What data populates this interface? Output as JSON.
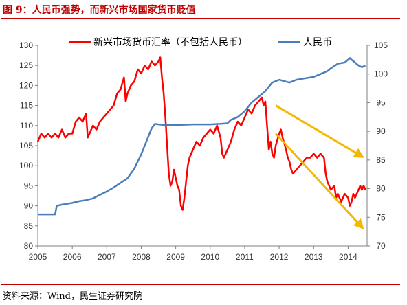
{
  "header": {
    "title": "图 9：人民币强势，而新兴市场国家货币贬值"
  },
  "footer": {
    "source": "资料来源：Wind，民生证券研究院"
  },
  "colors": {
    "accent": "#c00000",
    "series_red": "#ff0000",
    "series_blue": "#4a7ebb",
    "arrow": "#f5b800"
  },
  "chart_data": {
    "type": "line",
    "legend_position": "top",
    "grid": false,
    "x_ticks": [
      "2005",
      "2006",
      "2007",
      "2008",
      "2009",
      "2010",
      "2011",
      "2012",
      "2013",
      "2014"
    ],
    "x_range": [
      2005.0,
      2014.55
    ],
    "y_left": {
      "min": 80,
      "max": 130,
      "ticks": [
        80,
        85,
        90,
        95,
        100,
        105,
        110,
        115,
        120,
        125,
        130
      ]
    },
    "y_right": {
      "min": 70,
      "max": 105,
      "ticks": [
        70,
        75,
        80,
        85,
        90,
        95,
        100,
        105
      ]
    },
    "series": [
      {
        "name": "新兴市场货币汇率（不包括人民币）",
        "axis": "left",
        "color": "#ff0000",
        "points": [
          [
            2005.0,
            106
          ],
          [
            2005.1,
            108
          ],
          [
            2005.2,
            107
          ],
          [
            2005.3,
            108
          ],
          [
            2005.4,
            107
          ],
          [
            2005.5,
            108
          ],
          [
            2005.6,
            107
          ],
          [
            2005.7,
            109
          ],
          [
            2005.8,
            107
          ],
          [
            2005.9,
            108
          ],
          [
            2006.0,
            108
          ],
          [
            2006.1,
            111
          ],
          [
            2006.2,
            112
          ],
          [
            2006.3,
            111
          ],
          [
            2006.4,
            113
          ],
          [
            2006.45,
            107
          ],
          [
            2006.5,
            108
          ],
          [
            2006.6,
            110
          ],
          [
            2006.7,
            109
          ],
          [
            2006.8,
            111
          ],
          [
            2006.9,
            112
          ],
          [
            2007.0,
            113
          ],
          [
            2007.1,
            114
          ],
          [
            2007.2,
            115
          ],
          [
            2007.3,
            118
          ],
          [
            2007.4,
            119
          ],
          [
            2007.5,
            122
          ],
          [
            2007.55,
            116
          ],
          [
            2007.6,
            118
          ],
          [
            2007.7,
            120
          ],
          [
            2007.8,
            121
          ],
          [
            2007.9,
            124
          ],
          [
            2008.0,
            123
          ],
          [
            2008.1,
            125
          ],
          [
            2008.2,
            124
          ],
          [
            2008.3,
            126
          ],
          [
            2008.4,
            125
          ],
          [
            2008.5,
            126
          ],
          [
            2008.55,
            127
          ],
          [
            2008.6,
            122
          ],
          [
            2008.65,
            118
          ],
          [
            2008.7,
            112
          ],
          [
            2008.75,
            105
          ],
          [
            2008.8,
            98
          ],
          [
            2008.85,
            95
          ],
          [
            2008.9,
            96
          ],
          [
            2008.95,
            99
          ],
          [
            2009.0,
            97
          ],
          [
            2009.05,
            95
          ],
          [
            2009.1,
            94
          ],
          [
            2009.15,
            90
          ],
          [
            2009.2,
            89
          ],
          [
            2009.25,
            92
          ],
          [
            2009.3,
            96
          ],
          [
            2009.35,
            100
          ],
          [
            2009.4,
            102
          ],
          [
            2009.5,
            104
          ],
          [
            2009.6,
            106
          ],
          [
            2009.7,
            105
          ],
          [
            2009.8,
            107
          ],
          [
            2009.9,
            108
          ],
          [
            2010.0,
            109
          ],
          [
            2010.1,
            108
          ],
          [
            2010.2,
            110
          ],
          [
            2010.3,
            107
          ],
          [
            2010.35,
            103
          ],
          [
            2010.4,
            102
          ],
          [
            2010.5,
            104
          ],
          [
            2010.6,
            106
          ],
          [
            2010.7,
            109
          ],
          [
            2010.8,
            111
          ],
          [
            2010.9,
            110
          ],
          [
            2011.0,
            112
          ],
          [
            2011.1,
            114
          ],
          [
            2011.2,
            113
          ],
          [
            2011.3,
            115
          ],
          [
            2011.4,
            116
          ],
          [
            2011.5,
            117
          ],
          [
            2011.55,
            115
          ],
          [
            2011.6,
            116
          ],
          [
            2011.65,
            110
          ],
          [
            2011.7,
            104
          ],
          [
            2011.75,
            106
          ],
          [
            2011.8,
            103
          ],
          [
            2011.85,
            102
          ],
          [
            2011.9,
            105
          ],
          [
            2012.0,
            108
          ],
          [
            2012.05,
            109
          ],
          [
            2012.1,
            107
          ],
          [
            2012.2,
            104
          ],
          [
            2012.25,
            102
          ],
          [
            2012.3,
            101
          ],
          [
            2012.35,
            99
          ],
          [
            2012.4,
            98
          ],
          [
            2012.5,
            99
          ],
          [
            2012.6,
            100
          ],
          [
            2012.7,
            101
          ],
          [
            2012.8,
            102
          ],
          [
            2012.9,
            102
          ],
          [
            2013.0,
            103
          ],
          [
            2013.1,
            102
          ],
          [
            2013.2,
            103
          ],
          [
            2013.3,
            102
          ],
          [
            2013.35,
            98
          ],
          [
            2013.4,
            96
          ],
          [
            2013.5,
            94
          ],
          [
            2013.6,
            95
          ],
          [
            2013.65,
            92
          ],
          [
            2013.7,
            93
          ],
          [
            2013.8,
            91
          ],
          [
            2013.9,
            93
          ],
          [
            2014.0,
            92
          ],
          [
            2014.05,
            90
          ],
          [
            2014.1,
            91
          ],
          [
            2014.15,
            93
          ],
          [
            2014.2,
            92
          ],
          [
            2014.3,
            94
          ],
          [
            2014.35,
            95
          ],
          [
            2014.4,
            94
          ],
          [
            2014.45,
            95
          ],
          [
            2014.5,
            94
          ]
        ]
      },
      {
        "name": "人民币",
        "axis": "right",
        "color": "#4a7ebb",
        "points": [
          [
            2005.0,
            75.5
          ],
          [
            2005.5,
            75.5
          ],
          [
            2005.55,
            77
          ],
          [
            2005.7,
            77.2
          ],
          [
            2005.9,
            77.4
          ],
          [
            2006.0,
            77.5
          ],
          [
            2006.2,
            77.8
          ],
          [
            2006.4,
            78
          ],
          [
            2006.6,
            78.3
          ],
          [
            2006.8,
            78.9
          ],
          [
            2007.0,
            79.5
          ],
          [
            2007.2,
            80.2
          ],
          [
            2007.4,
            81
          ],
          [
            2007.6,
            81.8
          ],
          [
            2007.8,
            83.5
          ],
          [
            2008.0,
            86
          ],
          [
            2008.1,
            87.5
          ],
          [
            2008.2,
            89
          ],
          [
            2008.3,
            90.5
          ],
          [
            2008.4,
            91.3
          ],
          [
            2008.5,
            91.2
          ],
          [
            2008.7,
            91.1
          ],
          [
            2009.0,
            91.1
          ],
          [
            2009.5,
            91.2
          ],
          [
            2010.0,
            91.2
          ],
          [
            2010.3,
            91.3
          ],
          [
            2010.5,
            91.4
          ],
          [
            2010.6,
            92
          ],
          [
            2010.8,
            92.5
          ],
          [
            2011.0,
            93.5
          ],
          [
            2011.2,
            95
          ],
          [
            2011.4,
            96
          ],
          [
            2011.6,
            97
          ],
          [
            2011.7,
            97.8
          ],
          [
            2011.8,
            98.5
          ],
          [
            2012.0,
            99
          ],
          [
            2012.3,
            98.5
          ],
          [
            2012.5,
            99
          ],
          [
            2012.7,
            99.2
          ],
          [
            2013.0,
            99.5
          ],
          [
            2013.2,
            100
          ],
          [
            2013.4,
            100.5
          ],
          [
            2013.5,
            101
          ],
          [
            2013.7,
            101.8
          ],
          [
            2013.9,
            102
          ],
          [
            2014.0,
            102.5
          ],
          [
            2014.05,
            102.8
          ],
          [
            2014.1,
            102.5
          ],
          [
            2014.2,
            102
          ],
          [
            2014.3,
            101.5
          ],
          [
            2014.4,
            101.2
          ],
          [
            2014.5,
            101.5
          ]
        ]
      }
    ],
    "annotations": [
      {
        "type": "arrow",
        "from": [
          2011.9,
          115
        ],
        "to": [
          2014.42,
          102.2
        ],
        "axis_from": "left",
        "axis_to": "left",
        "color": "#f5b800"
      },
      {
        "type": "arrow",
        "from": [
          2011.9,
          108
        ],
        "to": [
          2014.42,
          84.5
        ],
        "axis_from": "left",
        "axis_to": "left",
        "color": "#f5b800"
      }
    ]
  }
}
